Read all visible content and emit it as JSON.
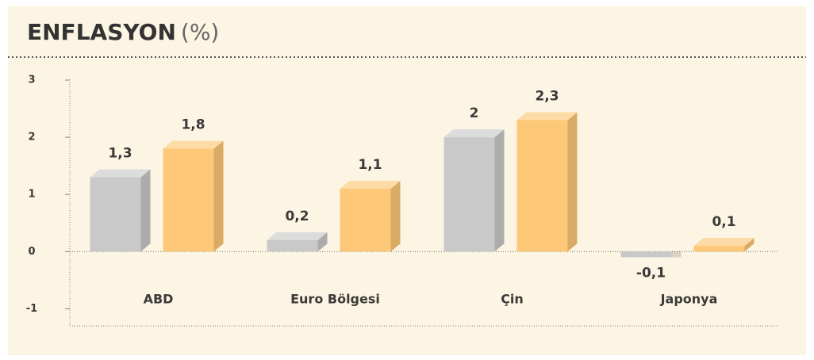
{
  "chart_data": {
    "type": "bar3d",
    "title": "ENFLASYON",
    "title_unit": "(%)",
    "categories": [
      "ABD",
      "Euro Bölgesi",
      "Çin",
      "Japonya"
    ],
    "series": [
      {
        "color": "#c9c9c9",
        "values": [
          1.3,
          0.2,
          2,
          -0.1
        ],
        "value_labels": [
          "1,3",
          "0,2",
          "2",
          "-0,1"
        ]
      },
      {
        "color": "#fdc877",
        "values": [
          1.8,
          1.1,
          2.3,
          0.1
        ],
        "value_labels": [
          "1,8",
          "1,1",
          "2,3",
          "0,1"
        ]
      }
    ],
    "ylim": [
      -1.3,
      3
    ],
    "yticks": [
      -1,
      0,
      1,
      2,
      3
    ]
  }
}
